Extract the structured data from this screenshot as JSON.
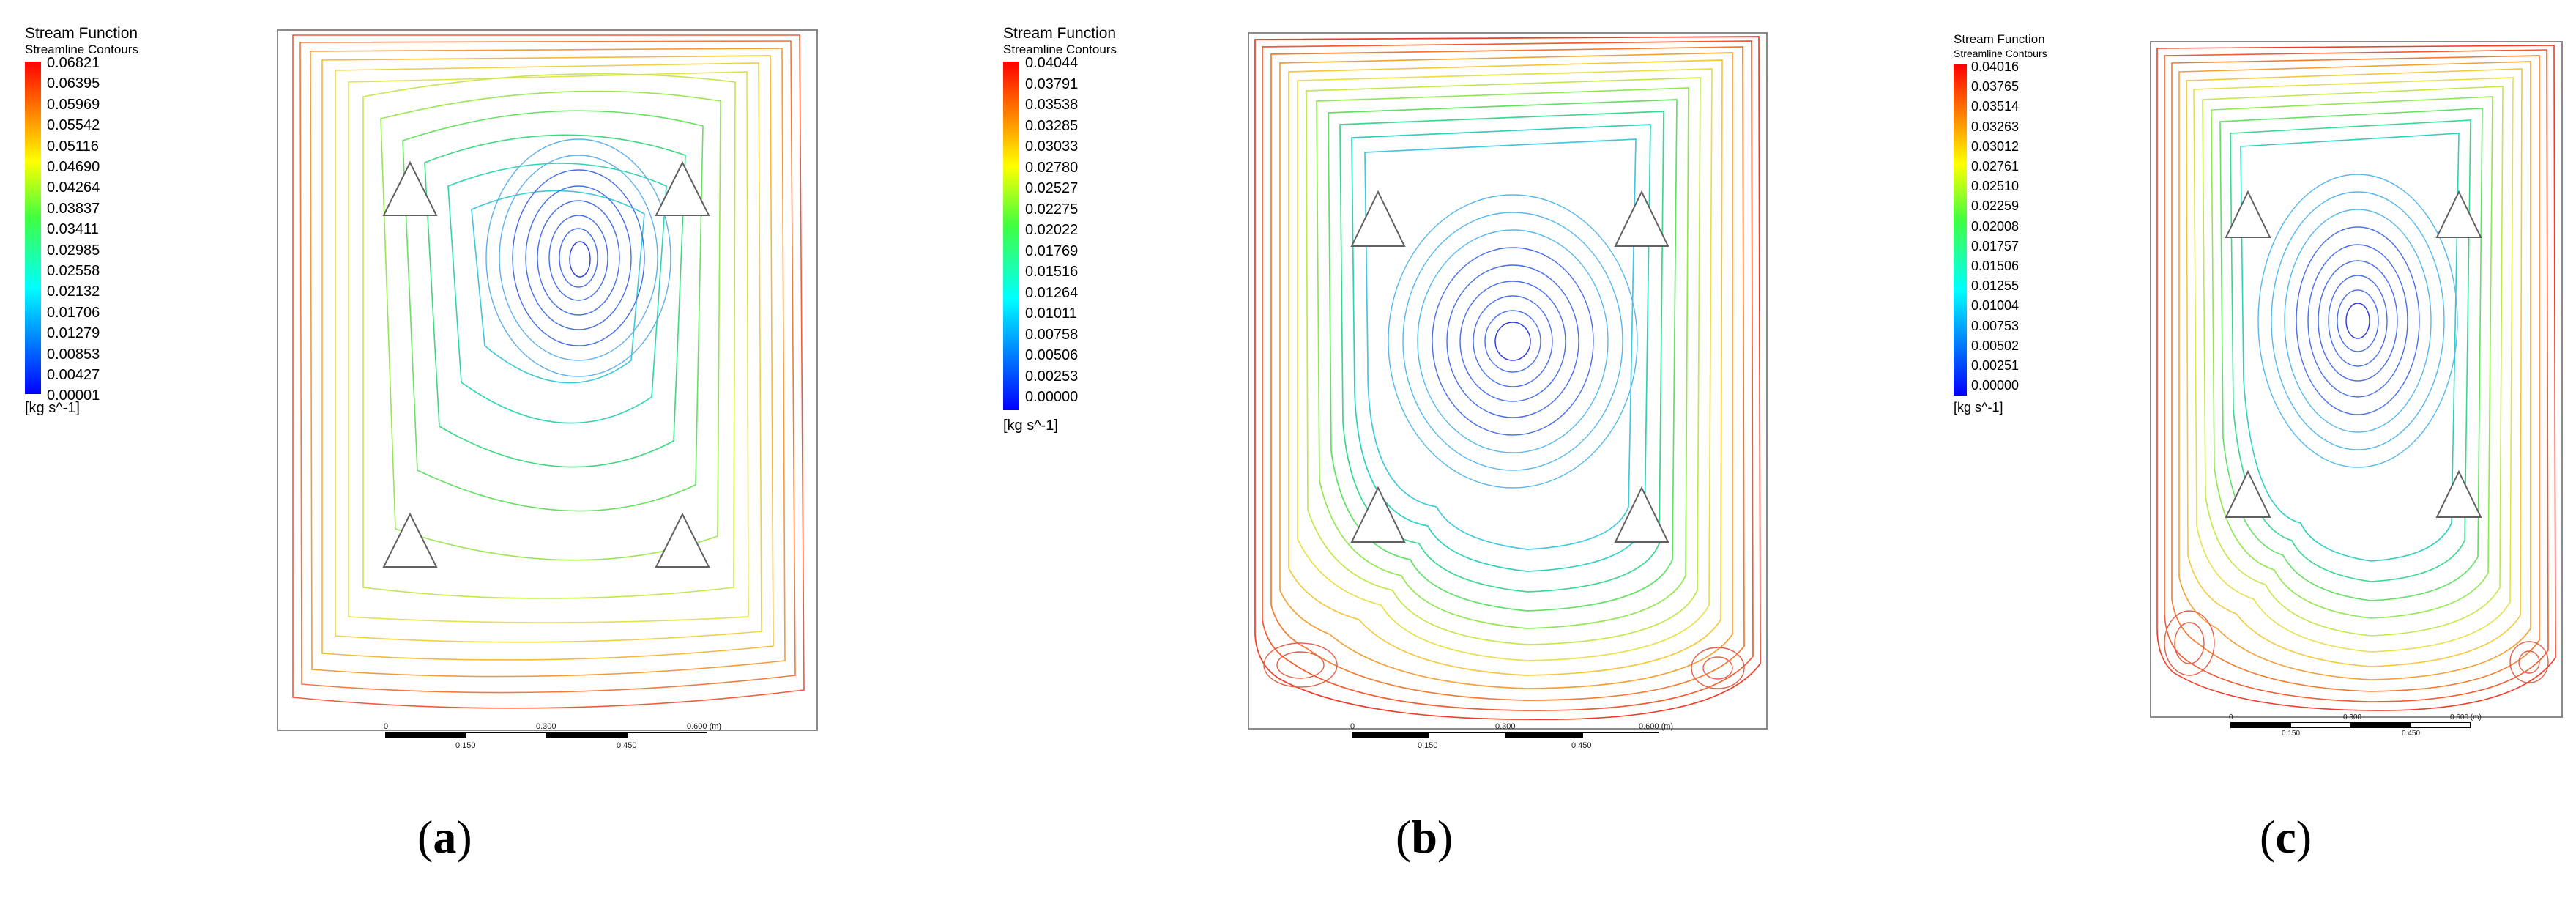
{
  "panels": [
    {
      "label_open": "(",
      "label_letter": "a",
      "label_close": ")",
      "legend_title": "Stream Function",
      "legend_subtitle": "Streamline Contours",
      "ticks": [
        "0.06821",
        "0.06395",
        "0.05969",
        "0.05542",
        "0.05116",
        "0.04690",
        "0.04264",
        "0.03837",
        "0.03411",
        "0.02985",
        "0.02558",
        "0.02132",
        "0.01706",
        "0.01279",
        "0.00853",
        "0.00427",
        "0.00001"
      ],
      "unit": "[kg s^-1]",
      "scale_top": [
        "0",
        "0.300",
        "0.600  (m)"
      ],
      "scale_bottom": [
        "0.150",
        "0.450"
      ]
    },
    {
      "label_open": "(",
      "label_letter": "b",
      "label_close": ")",
      "legend_title": "Stream Function",
      "legend_subtitle": "Streamline Contours",
      "ticks": [
        "0.04044",
        "0.03791",
        "0.03538",
        "0.03285",
        "0.03033",
        "0.02780",
        "0.02527",
        "0.02275",
        "0.02022",
        "0.01769",
        "0.01516",
        "0.01264",
        "0.01011",
        "0.00758",
        "0.00506",
        "0.00253",
        "0.00000"
      ],
      "unit": "[kg s^-1]",
      "scale_top": [
        "0",
        "0.300",
        "0.600  (m)"
      ],
      "scale_bottom": [
        "0.150",
        "0.450"
      ]
    },
    {
      "label_open": "(",
      "label_letter": "c",
      "label_close": ")",
      "legend_title": "Stream Function",
      "legend_subtitle": "Streamline Contours",
      "ticks": [
        "0.04016",
        "0.03765",
        "0.03514",
        "0.03263",
        "0.03012",
        "0.02761",
        "0.02510",
        "0.02259",
        "0.02008",
        "0.01757",
        "0.01506",
        "0.01255",
        "0.01004",
        "0.00753",
        "0.00502",
        "0.00251",
        "0.00000"
      ],
      "unit": "[kg s^-1]",
      "scale_top": [
        "0",
        "0.300",
        "0.600  (m)"
      ],
      "scale_bottom": [
        "0.150",
        "0.450"
      ]
    }
  ]
}
